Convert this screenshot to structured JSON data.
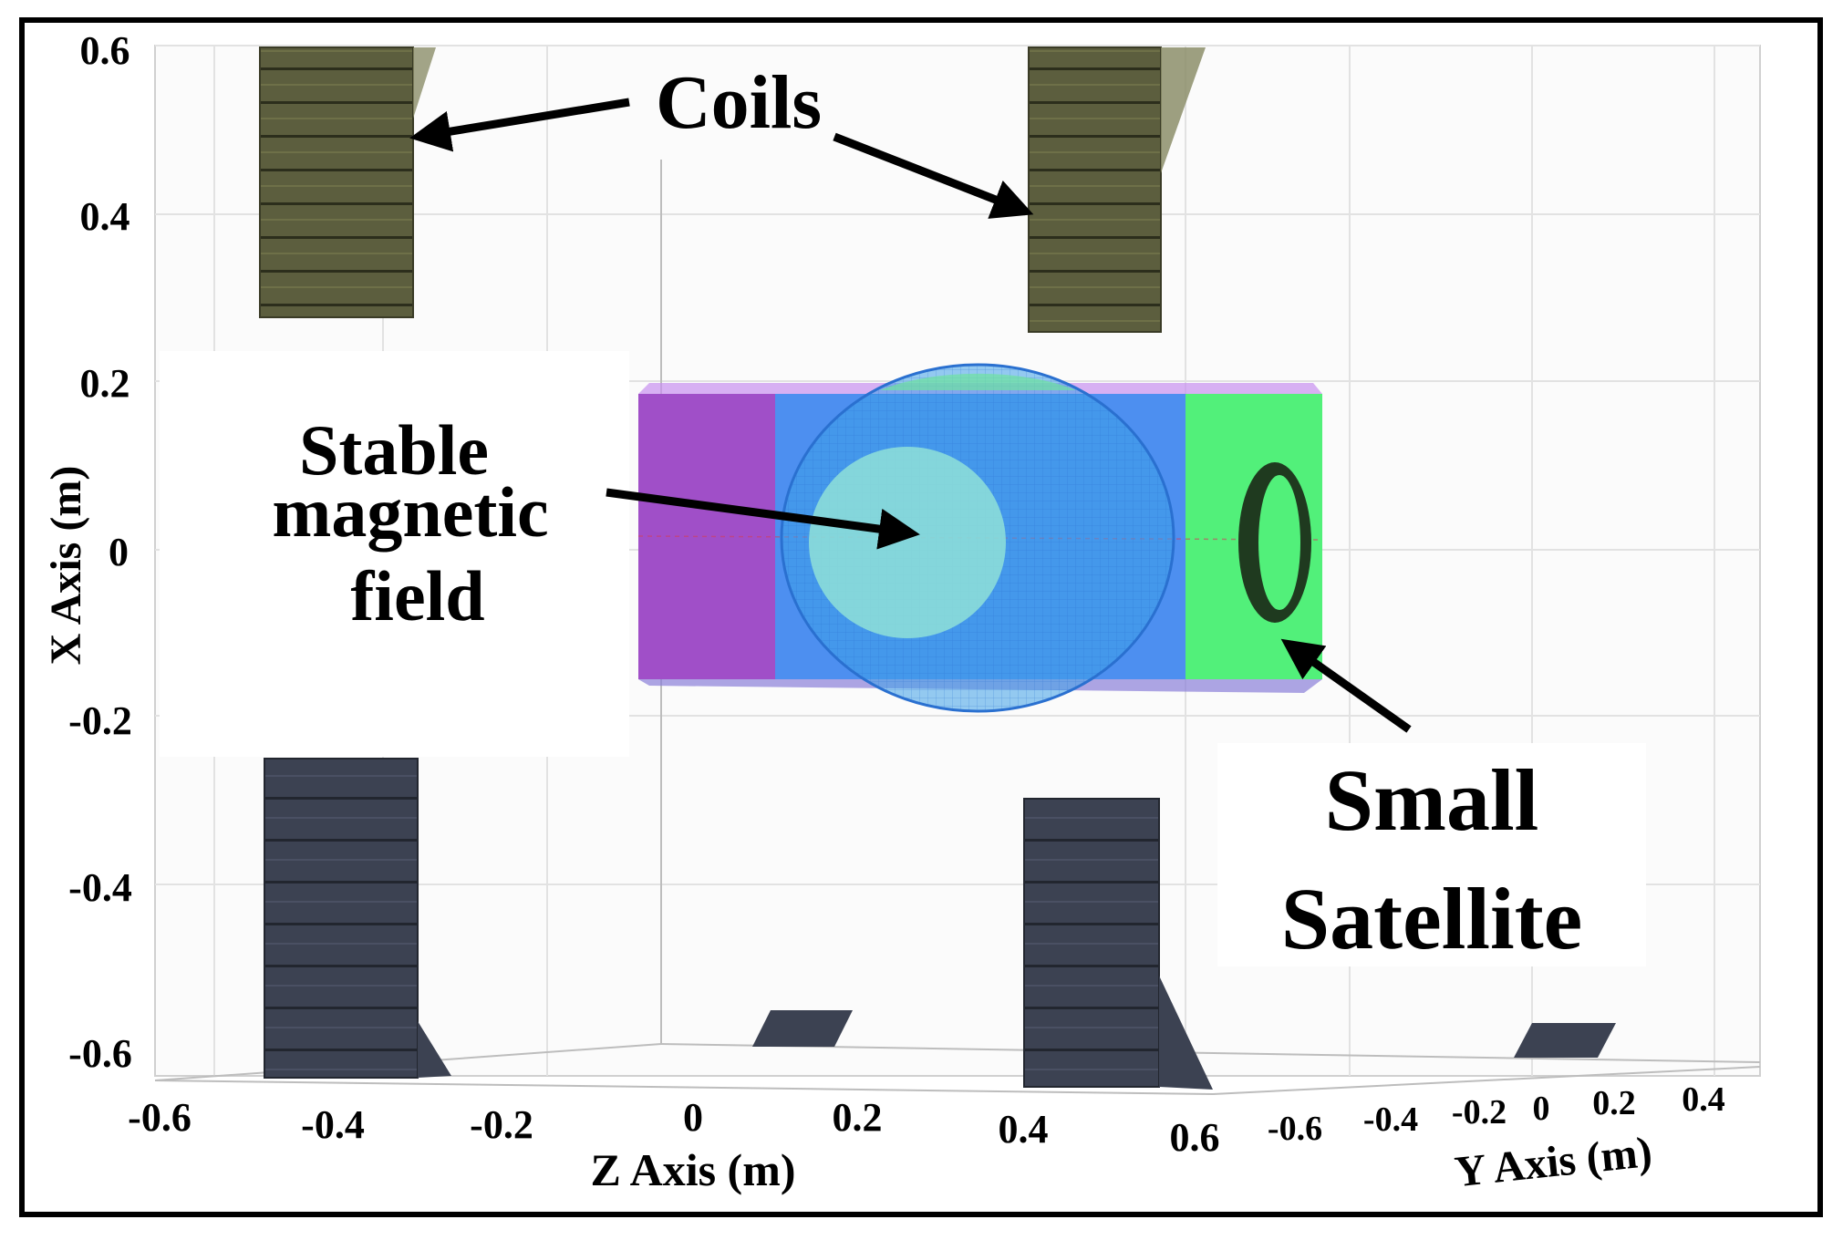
{
  "axes": {
    "x_axis_label": "X Axis (m)",
    "z_axis_label": "Z Axis (m)",
    "y_axis_label": "Y Axis (m)",
    "x_ticks": [
      "0.6",
      "0.4",
      "0.2",
      "0",
      "-0.2",
      "-0.4",
      "-0.6"
    ],
    "z_ticks": [
      "-0.6",
      "-0.4",
      "-0.2",
      "0",
      "0.2",
      "0.4",
      "0.6"
    ],
    "y_ticks": [
      "-0.6",
      "-0.4",
      "-0.2",
      "0",
      "0.2",
      "0.4"
    ]
  },
  "annotations": {
    "coils": "Coils",
    "field_line1": "Stable",
    "field_line2": "magnetic",
    "field_line3": "field",
    "sat_line1": "Small",
    "sat_line2": "Satellite"
  },
  "colors": {
    "coil_top": "#5c5e3e",
    "coil_bottom": "#3c4252",
    "cube_front": "#4d8ff0",
    "cube_left": "#a04fc8",
    "cube_right": "#52f07a",
    "sphere": "#3ea0e8",
    "inner_circle": "#8fe0d8"
  }
}
